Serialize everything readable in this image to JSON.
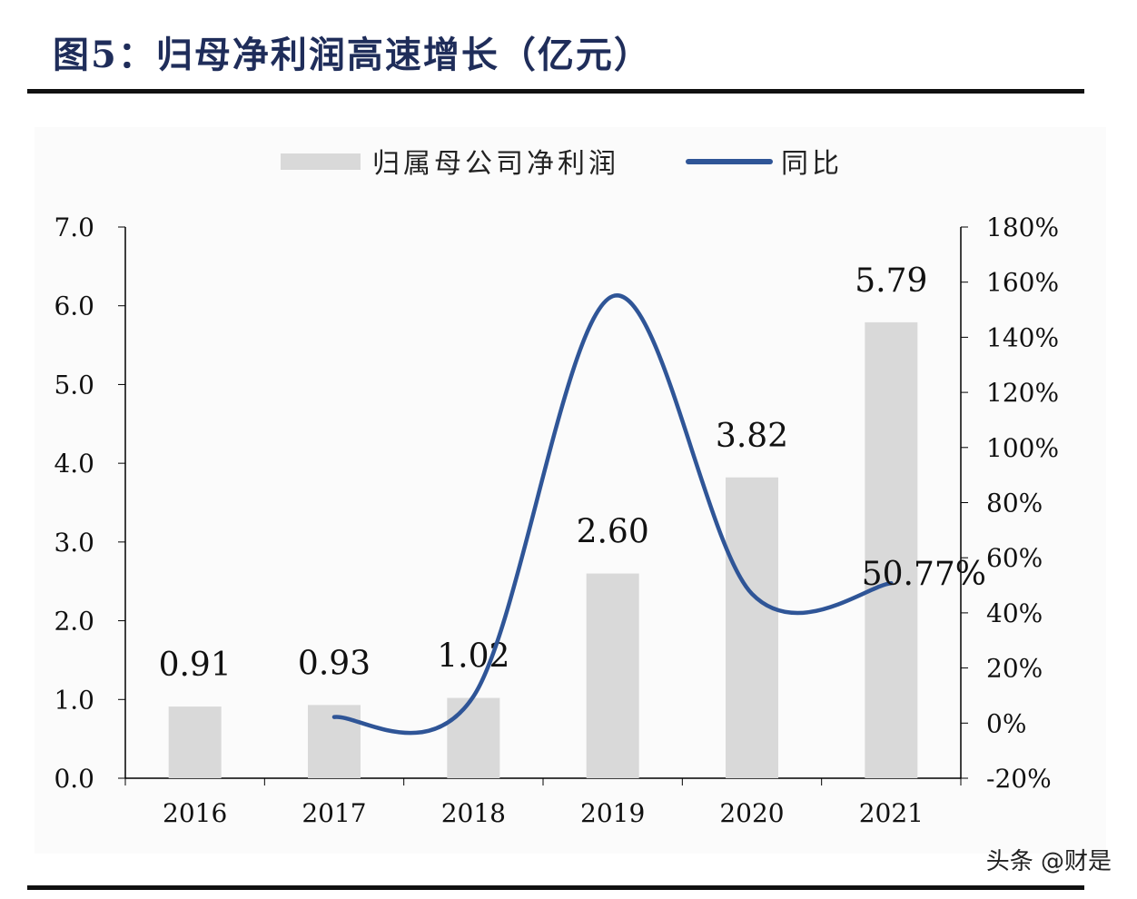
{
  "title": "图5：归母净利润高速增长（亿元）",
  "watermark": "头条 @财是",
  "chart_data": {
    "type": "bar+line",
    "categories": [
      "2016",
      "2017",
      "2018",
      "2019",
      "2020",
      "2021"
    ],
    "series": [
      {
        "name": "归属母公司净利润",
        "type": "bar",
        "axis": "left",
        "values": [
          0.91,
          0.93,
          1.02,
          2.6,
          3.82,
          5.79
        ],
        "labels": [
          "0.91",
          "0.93",
          "1.02",
          "2.60",
          "3.82",
          "5.79"
        ],
        "color": "#d9d9d9"
      },
      {
        "name": "同比",
        "type": "line",
        "axis": "right",
        "values": [
          null,
          2.2,
          9.7,
          154.9,
          46.9,
          50.77
        ],
        "color": "#2f5597"
      }
    ],
    "annotations": [
      {
        "category": "2021",
        "text": "50.77%"
      }
    ],
    "left_axis": {
      "ylim": [
        0,
        7
      ],
      "ticks": [
        "0.0",
        "1.0",
        "2.0",
        "3.0",
        "4.0",
        "5.0",
        "6.0",
        "7.0"
      ]
    },
    "right_axis": {
      "ylim": [
        -20,
        180
      ],
      "ticks": [
        "-20%",
        "0%",
        "20%",
        "40%",
        "60%",
        "80%",
        "100%",
        "120%",
        "140%",
        "160%",
        "180%"
      ]
    },
    "legend": "top",
    "grid": false
  }
}
